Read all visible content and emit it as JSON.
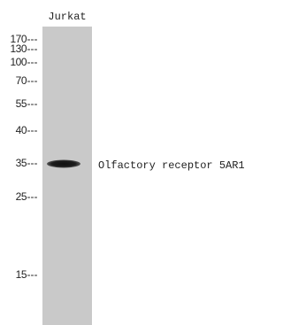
{
  "lane": {
    "label": "Jurkat"
  },
  "markers": [
    "170",
    "130",
    "100",
    "70",
    "55",
    "40",
    "35",
    "25",
    "15"
  ],
  "band": {
    "label": "Olfactory receptor 5AR1"
  }
}
